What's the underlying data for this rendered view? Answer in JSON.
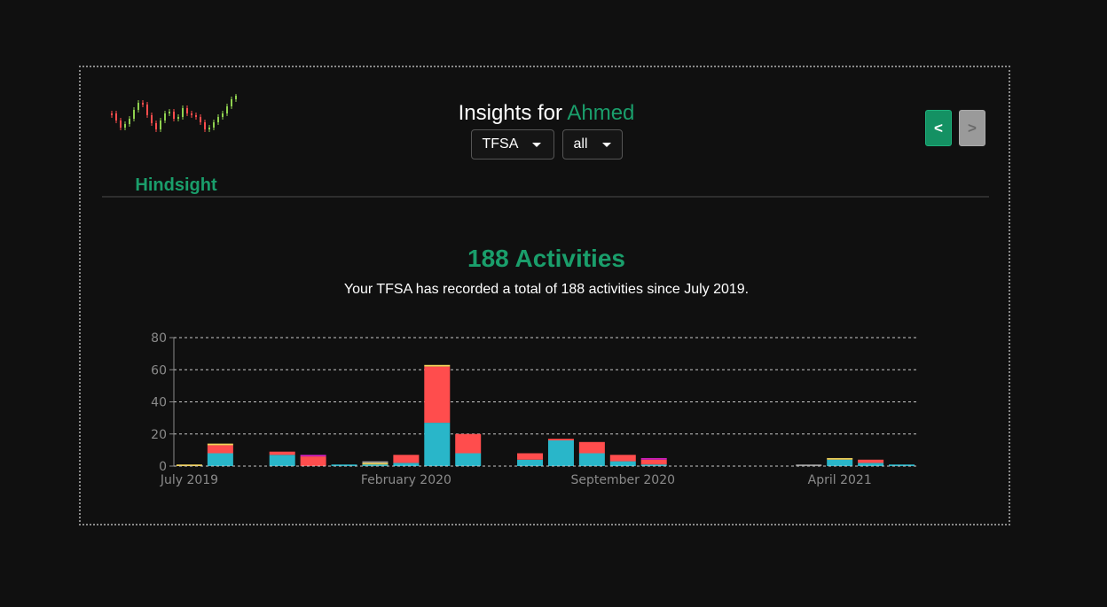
{
  "brand": {
    "name": "Hindsight"
  },
  "header": {
    "title_prefix": "Insights for",
    "user_name": "Ahmed",
    "account_select": {
      "value": "TFSA"
    },
    "type_select": {
      "value": "all"
    },
    "prev_label": "<",
    "next_label": ">"
  },
  "summary": {
    "headline": "188 Activities",
    "description": "Your TFSA has recorded a total of 188 activities since July 2019."
  },
  "colors": {
    "accent": "#1a9e6b",
    "teal": "#29b6c9",
    "red": "#ff4d4d",
    "yellow": "#f3d35a",
    "magenta": "#d61fbf",
    "gray": "#9a9a9a"
  },
  "chart_data": {
    "type": "bar",
    "stacked": true,
    "ylim": [
      0,
      80
    ],
    "y_ticks": [
      "0",
      "20",
      "40",
      "60",
      "80"
    ],
    "grid": true,
    "x_tick_labels": [
      "July 2019",
      "February 2020",
      "September 2020",
      "April 2021"
    ],
    "categories": [
      "2019-07",
      "2019-08",
      "2019-09",
      "2019-10",
      "2019-11",
      "2019-12",
      "2020-01",
      "2020-02",
      "2020-03",
      "2020-04",
      "2020-05",
      "2020-06",
      "2020-07",
      "2020-08",
      "2020-09",
      "2020-10",
      "2020-11",
      "2020-12",
      "2021-01",
      "2021-02",
      "2021-03",
      "2021-04",
      "2021-05",
      "2021-06"
    ],
    "series": [
      {
        "color": "#29b6c9",
        "values": [
          0,
          8,
          0,
          7,
          0,
          1,
          1,
          2,
          27,
          8,
          0,
          4,
          16,
          8,
          3,
          1,
          0,
          0,
          0,
          0,
          0,
          4,
          2,
          1
        ]
      },
      {
        "color": "#ff4d4d",
        "values": [
          0,
          5,
          0,
          2,
          6,
          0,
          0,
          5,
          35,
          12,
          0,
          4,
          1,
          7,
          4,
          3,
          0,
          0,
          0,
          0,
          0,
          0,
          2,
          0
        ]
      },
      {
        "color": "#f3d35a",
        "values": [
          1,
          1,
          0,
          0,
          0,
          0,
          1,
          0,
          1,
          0,
          0,
          0,
          0,
          0,
          0,
          0,
          0,
          0,
          0,
          0,
          0,
          1,
          0,
          0
        ]
      },
      {
        "color": "#d61fbf",
        "values": [
          0,
          0,
          0,
          0,
          1,
          0,
          0,
          0,
          0,
          0,
          0,
          0,
          0,
          0,
          0,
          1,
          0,
          0,
          0,
          0,
          0,
          0,
          0,
          0
        ]
      },
      {
        "color": "#9a9a9a",
        "values": [
          0,
          0,
          0,
          0,
          0,
          0,
          1,
          0,
          0,
          0,
          0,
          0,
          0,
          0,
          0,
          0,
          0,
          0,
          0,
          0,
          1,
          0,
          0,
          0
        ]
      }
    ]
  }
}
